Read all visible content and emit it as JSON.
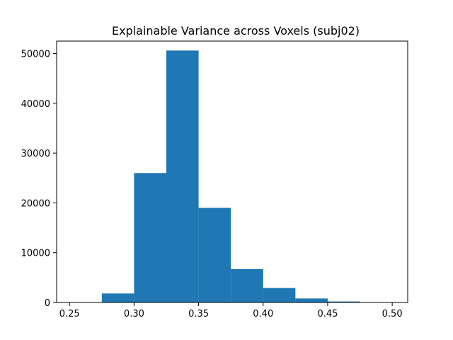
{
  "chart_data": {
    "type": "bar",
    "title": "Explainable Variance across Voxels (subj02)",
    "xlabel": "",
    "ylabel": "",
    "xlim": [
      0.24,
      0.512
    ],
    "ylim": [
      0,
      52500
    ],
    "x_ticks": [
      0.25,
      0.3,
      0.35,
      0.4,
      0.45,
      0.5
    ],
    "x_tick_labels": [
      "0.25",
      "0.30",
      "0.35",
      "0.40",
      "0.45",
      "0.50"
    ],
    "y_ticks": [
      0,
      10000,
      20000,
      30000,
      40000,
      50000
    ],
    "y_tick_labels": [
      "0",
      "10000",
      "20000",
      "30000",
      "40000",
      "50000"
    ],
    "bins": [
      {
        "x0": 0.25,
        "x1": 0.275,
        "count": 0
      },
      {
        "x0": 0.275,
        "x1": 0.3,
        "count": 1800
      },
      {
        "x0": 0.3,
        "x1": 0.325,
        "count": 26000
      },
      {
        "x0": 0.325,
        "x1": 0.35,
        "count": 50600
      },
      {
        "x0": 0.35,
        "x1": 0.375,
        "count": 19000
      },
      {
        "x0": 0.375,
        "x1": 0.4,
        "count": 6700
      },
      {
        "x0": 0.4,
        "x1": 0.425,
        "count": 2900
      },
      {
        "x0": 0.425,
        "x1": 0.45,
        "count": 800
      },
      {
        "x0": 0.45,
        "x1": 0.475,
        "count": 200
      },
      {
        "x0": 0.475,
        "x1": 0.5,
        "count": 30
      }
    ],
    "bar_color": "#1f77b4",
    "grid": false,
    "legend": "none"
  }
}
